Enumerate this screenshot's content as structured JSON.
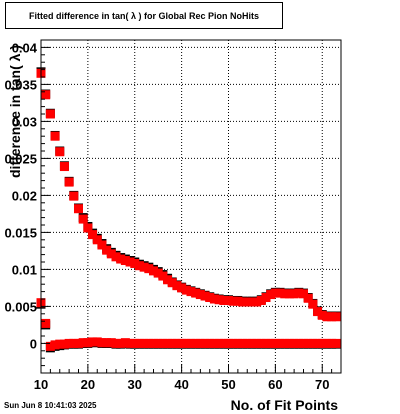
{
  "header": {
    "title": "Fitted difference in tan( λ ) for Global Rec Pion NoHits"
  },
  "footer": {
    "timestamp": "Sun Jun  8 10:41:03 2025"
  },
  "colors": {
    "series_red": "#ff0000",
    "series_black": "#000000",
    "grid": "#000000",
    "background": "#ffffff"
  },
  "chart_data": {
    "type": "scatter",
    "title": "Fitted difference in tan( λ ) for Global Rec Pion NoHits",
    "xlabel": "No. of Fit Points",
    "ylabel": "difference in tan( λ )",
    "xlim": [
      10,
      74
    ],
    "ylim": [
      -0.004,
      0.041
    ],
    "x_ticks": [
      10,
      20,
      30,
      40,
      50,
      60,
      70
    ],
    "y_ticks": [
      0,
      0.005,
      0.01,
      0.015,
      0.02,
      0.025,
      0.03,
      0.035,
      0.04
    ],
    "y_tick_labels": [
      "0",
      "0.005",
      "0.01",
      "0.015",
      "0.02",
      "0.025",
      "0.03",
      "0.035",
      "0.04"
    ],
    "grid": true,
    "marker": "square",
    "series": [
      {
        "color": "#ff0000",
        "x": [
          10,
          11,
          12,
          13,
          14,
          15,
          16,
          17,
          18,
          19,
          20,
          21,
          22,
          23,
          24,
          25,
          26,
          27,
          28,
          29,
          30,
          31,
          32,
          33,
          34,
          35,
          36,
          37,
          38,
          39,
          40,
          41,
          42,
          43,
          44,
          45,
          46,
          47,
          48,
          49,
          50,
          51,
          52,
          53,
          54,
          55,
          56,
          57,
          58,
          59,
          60,
          61,
          62,
          63,
          64,
          65,
          66,
          67,
          68,
          69,
          70,
          71,
          72,
          73
        ],
        "y": [
          0.0365,
          0.0336,
          0.031,
          0.028,
          0.0259,
          0.0239,
          0.0218,
          0.0199,
          0.0182,
          0.0168,
          0.0156,
          0.0147,
          0.014,
          0.0133,
          0.0126,
          0.0121,
          0.0117,
          0.0114,
          0.0112,
          0.011,
          0.0108,
          0.0105,
          0.0103,
          0.0101,
          0.0098,
          0.0095,
          0.0091,
          0.0086,
          0.0082,
          0.0078,
          0.0075,
          0.0072,
          0.007,
          0.0068,
          0.0066,
          0.0064,
          0.0062,
          0.006,
          0.0059,
          0.0058,
          0.0058,
          0.0057,
          0.0057,
          0.0056,
          0.0056,
          0.0056,
          0.0056,
          0.0058,
          0.0062,
          0.0066,
          0.0068,
          0.0068,
          0.0067,
          0.0067,
          0.0067,
          0.0068,
          0.0067,
          0.0061,
          0.0053,
          0.0043,
          0.0038,
          0.0036,
          0.0036,
          0.0036
        ]
      },
      {
        "color": "#ff0000",
        "x": [
          10,
          11,
          12,
          13,
          14,
          15,
          16,
          17,
          18,
          19,
          20,
          21,
          22,
          23,
          24,
          25,
          26,
          27,
          28,
          29,
          30,
          31,
          32,
          33,
          34,
          35,
          36,
          37,
          38,
          39,
          40,
          41,
          42,
          43,
          44,
          45,
          46,
          47,
          48,
          49,
          50,
          51,
          52,
          53,
          54,
          55,
          56,
          57,
          58,
          59,
          60,
          61,
          62,
          63,
          64,
          65,
          66,
          67,
          68,
          69,
          70,
          71,
          72,
          73
        ],
        "y": [
          0.0055,
          0.0027,
          -0.0004,
          -0.0002,
          -0.0001,
          -0.0001,
          0.0,
          0.0,
          0.0,
          0.0001,
          0.0001,
          0.0002,
          0.0002,
          0.0001,
          0.0001,
          0.0001,
          0.0,
          0.0,
          0.0001,
          0.0,
          0.0,
          0.0,
          0.0,
          0.0,
          0.0,
          0.0,
          0.0,
          0.0,
          0.0,
          0.0,
          0.0,
          0.0,
          0.0,
          0.0,
          0.0,
          0.0,
          0.0,
          0.0,
          0.0,
          0.0,
          0.0,
          0.0,
          0.0,
          0.0,
          0.0,
          0.0,
          0.0,
          0.0,
          0.0,
          0.0,
          0.0,
          0.0,
          0.0,
          0.0,
          0.0,
          0.0,
          0.0,
          0.0,
          0.0,
          0.0,
          0.0,
          0.0,
          0.0,
          0.0
        ]
      },
      {
        "color": "#000000",
        "x": [
          10,
          11,
          12,
          13,
          14,
          15,
          16,
          17,
          18,
          19,
          20,
          21,
          22,
          23,
          24,
          25,
          26,
          27,
          28,
          29,
          30,
          31,
          32,
          33,
          34,
          35,
          36,
          37,
          38,
          39,
          40,
          41,
          42,
          43,
          44,
          45,
          46,
          47,
          48,
          49,
          50,
          51,
          52,
          53,
          54,
          55,
          56,
          57,
          58,
          59,
          60,
          61,
          62,
          63,
          64,
          65,
          66,
          67,
          68,
          69,
          70,
          71,
          72,
          73
        ],
        "y": [
          0.0367,
          0.0337,
          0.0311,
          0.0281,
          0.026,
          0.024,
          0.0219,
          0.02,
          0.0183,
          0.017,
          0.0158,
          0.0149,
          0.0142,
          0.0135,
          0.0128,
          0.0123,
          0.0119,
          0.0116,
          0.0114,
          0.0112,
          0.011,
          0.0107,
          0.0105,
          0.0103,
          0.01,
          0.0097,
          0.0093,
          0.0088,
          0.0083,
          0.0079,
          0.0076,
          0.0073,
          0.0071,
          0.0069,
          0.0067,
          0.0065,
          0.0063,
          0.0061,
          0.006,
          0.0059,
          0.0059,
          0.0058,
          0.0058,
          0.0057,
          0.0057,
          0.0057,
          0.0057,
          0.0059,
          0.0063,
          0.0067,
          0.0069,
          0.0069,
          0.0068,
          0.0068,
          0.0068,
          0.0069,
          0.0068,
          0.0062,
          0.0054,
          0.0044,
          0.0039,
          0.0037,
          0.0037,
          0.0037
        ]
      },
      {
        "color": "#000000",
        "x": [
          10,
          11,
          12,
          13,
          14,
          15,
          16,
          17,
          18,
          19,
          20,
          21,
          22,
          23,
          24,
          25,
          26,
          27,
          28,
          29,
          30,
          31,
          32,
          33,
          34,
          35,
          36,
          37,
          38,
          39,
          40,
          41,
          42,
          43,
          44,
          45,
          46,
          47,
          48,
          49,
          50,
          51,
          52,
          53,
          54,
          55,
          56,
          57,
          58,
          59,
          60,
          61,
          62,
          63,
          64,
          65,
          66,
          67,
          68,
          69,
          70,
          71,
          72,
          73
        ],
        "y": [
          0.0053,
          0.0025,
          -0.0006,
          -0.0004,
          -0.0003,
          -0.0002,
          -0.0001,
          -0.0001,
          -0.0001,
          0.0,
          0.0,
          0.0001,
          0.0001,
          0.0,
          0.0,
          0.0,
          -0.0001,
          -0.0001,
          0.0,
          -0.0001,
          -0.0001,
          -0.0001,
          -0.0001,
          -0.0001,
          -0.0001,
          -0.0001,
          -0.0001,
          -0.0001,
          -0.0001,
          -0.0001,
          -0.0001,
          -0.0001,
          -0.0001,
          -0.0001,
          -0.0001,
          -0.0001,
          -0.0001,
          -0.0001,
          -0.0001,
          -0.0001,
          -0.0001,
          -0.0001,
          -0.0001,
          -0.0001,
          -0.0001,
          -0.0001,
          -0.0001,
          -0.0001,
          -0.0001,
          -0.0001,
          -0.0001,
          -0.0001,
          -0.0001,
          -0.0001,
          -0.0001,
          -0.0001,
          -0.0001,
          -0.0001,
          -0.0001,
          -0.0001,
          -0.0001,
          -0.0001,
          -0.0001,
          -0.0001
        ]
      }
    ]
  }
}
